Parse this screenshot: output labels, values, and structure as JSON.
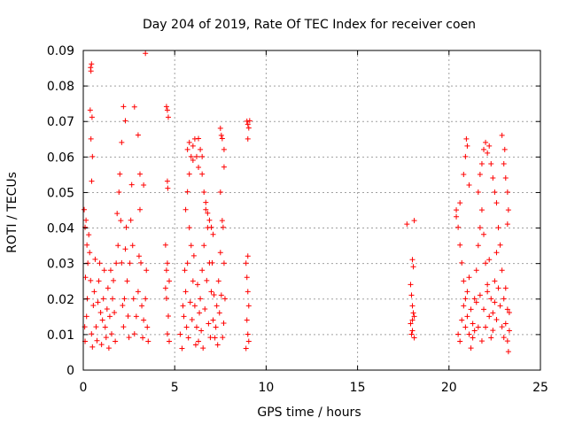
{
  "chart_data": {
    "type": "scatter",
    "title": "Day 204 of 2019, Rate Of TEC Index for receiver coen",
    "xlabel": "GPS time / hours",
    "ylabel": "ROTI / TECUs",
    "xlim": [
      0,
      25
    ],
    "ylim": [
      0,
      0.09
    ],
    "xticks": [
      0,
      5,
      10,
      15,
      20,
      25
    ],
    "yticks": [
      0,
      0.01,
      0.02,
      0.03,
      0.04,
      0.05,
      0.06,
      0.07,
      0.08,
      0.09
    ],
    "xtick_labels": [
      "0",
      "5",
      "10",
      "15",
      "20",
      "25"
    ],
    "ytick_labels": [
      "0",
      "0.01",
      "0.02",
      "0.03",
      "0.04",
      "0.05",
      "0.06",
      "0.07",
      "0.08",
      "0.09"
    ],
    "grid": true,
    "marker": "+",
    "color": "#ff0000",
    "series": [
      {
        "name": "ROTI",
        "points": [
          [
            0.05,
            0.0452
          ],
          [
            0.1,
            0.0402
          ],
          [
            0.15,
            0.0422
          ],
          [
            0.2,
            0.0352
          ],
          [
            0.12,
            0.0261
          ],
          [
            0.08,
            0.0122
          ],
          [
            0.1,
            0.0081
          ],
          [
            0.18,
            0.0151
          ],
          [
            0.22,
            0.0201
          ],
          [
            0.25,
            0.0301
          ],
          [
            0.3,
            0.0381
          ],
          [
            0.35,
            0.0331
          ],
          [
            0.4,
            0.0252
          ],
          [
            0.45,
            0.0102
          ],
          [
            0.5,
            0.0065
          ],
          [
            0.55,
            0.0182
          ],
          [
            0.6,
            0.0221
          ],
          [
            0.65,
            0.0312
          ],
          [
            0.7,
            0.0122
          ],
          [
            0.75,
            0.0083
          ],
          [
            0.8,
            0.0191
          ],
          [
            0.85,
            0.0251
          ],
          [
            0.9,
            0.0301
          ],
          [
            0.95,
            0.0162
          ],
          [
            1.0,
            0.0072
          ],
          [
            1.05,
            0.0141
          ],
          [
            1.1,
            0.0201
          ],
          [
            1.15,
            0.0281
          ],
          [
            1.2,
            0.0121
          ],
          [
            1.25,
            0.0092
          ],
          [
            1.3,
            0.0172
          ],
          [
            1.35,
            0.0231
          ],
          [
            1.4,
            0.0062
          ],
          [
            1.45,
            0.0151
          ],
          [
            1.5,
            0.0281
          ],
          [
            1.55,
            0.0102
          ],
          [
            1.6,
            0.0201
          ],
          [
            1.65,
            0.0252
          ],
          [
            1.7,
            0.0162
          ],
          [
            1.75,
            0.0081
          ],
          [
            1.8,
            0.0301
          ],
          [
            1.85,
            0.0441
          ],
          [
            1.9,
            0.0351
          ],
          [
            1.95,
            0.0501
          ],
          [
            2.0,
            0.0552
          ],
          [
            2.05,
            0.0421
          ],
          [
            2.1,
            0.0302
          ],
          [
            2.15,
            0.0182
          ],
          [
            2.2,
            0.0122
          ],
          [
            2.25,
            0.0201
          ],
          [
            2.3,
            0.0341
          ],
          [
            2.35,
            0.0402
          ],
          [
            2.4,
            0.0251
          ],
          [
            2.45,
            0.0152
          ],
          [
            2.5,
            0.0092
          ],
          [
            2.55,
            0.0301
          ],
          [
            2.6,
            0.0422
          ],
          [
            2.65,
            0.0522
          ],
          [
            2.7,
            0.0351
          ],
          [
            2.75,
            0.0201
          ],
          [
            2.8,
            0.0102
          ],
          [
            2.9,
            0.0151
          ],
          [
            3.0,
            0.0221
          ],
          [
            3.05,
            0.0321
          ],
          [
            3.1,
            0.0452
          ],
          [
            3.15,
            0.0302
          ],
          [
            3.2,
            0.0181
          ],
          [
            3.25,
            0.0091
          ],
          [
            3.3,
            0.0141
          ],
          [
            3.4,
            0.0201
          ],
          [
            3.45,
            0.0281
          ],
          [
            3.5,
            0.0121
          ],
          [
            3.55,
            0.0081
          ],
          [
            0.4,
            0.0852
          ],
          [
            0.45,
            0.0862
          ],
          [
            0.42,
            0.0842
          ],
          [
            0.38,
            0.0732
          ],
          [
            0.48,
            0.0712
          ],
          [
            0.42,
            0.0651
          ],
          [
            0.5,
            0.0601
          ],
          [
            0.46,
            0.0532
          ],
          [
            2.2,
            0.0742
          ],
          [
            2.3,
            0.0702
          ],
          [
            2.1,
            0.0641
          ],
          [
            2.8,
            0.0741
          ],
          [
            3.4,
            0.0892
          ],
          [
            3.0,
            0.0662
          ],
          [
            3.1,
            0.0552
          ],
          [
            3.3,
            0.0521
          ],
          [
            4.5,
            0.0352
          ],
          [
            4.6,
            0.0301
          ],
          [
            4.7,
            0.0251
          ],
          [
            4.55,
            0.0202
          ],
          [
            4.65,
            0.0152
          ],
          [
            4.6,
            0.0102
          ],
          [
            4.7,
            0.0081
          ],
          [
            4.5,
            0.0231
          ],
          [
            4.55,
            0.0281
          ],
          [
            4.6,
            0.0532
          ],
          [
            4.62,
            0.0512
          ],
          [
            4.55,
            0.0742
          ],
          [
            4.6,
            0.0732
          ],
          [
            4.65,
            0.0712
          ],
          [
            5.3,
            0.0101
          ],
          [
            5.4,
            0.0061
          ],
          [
            5.5,
            0.0151
          ],
          [
            5.6,
            0.0221
          ],
          [
            5.7,
            0.0301
          ],
          [
            5.8,
            0.0401
          ],
          [
            5.9,
            0.0351
          ],
          [
            6.0,
            0.0251
          ],
          [
            6.1,
            0.0181
          ],
          [
            6.2,
            0.0121
          ],
          [
            6.3,
            0.0081
          ],
          [
            6.4,
            0.0201
          ],
          [
            6.5,
            0.0281
          ],
          [
            6.6,
            0.0351
          ],
          [
            6.7,
            0.0452
          ],
          [
            6.8,
            0.0401
          ],
          [
            6.9,
            0.0302
          ],
          [
            7.0,
            0.0221
          ],
          [
            7.1,
            0.0141
          ],
          [
            7.2,
            0.0091
          ],
          [
            7.3,
            0.0181
          ],
          [
            7.4,
            0.0251
          ],
          [
            7.5,
            0.0331
          ],
          [
            7.6,
            0.0421
          ],
          [
            7.65,
            0.0402
          ],
          [
            7.7,
            0.0301
          ],
          [
            7.75,
            0.0201
          ],
          [
            5.45,
            0.0181
          ],
          [
            5.55,
            0.0281
          ],
          [
            5.65,
            0.0121
          ],
          [
            5.75,
            0.0091
          ],
          [
            5.85,
            0.0191
          ],
          [
            5.95,
            0.0142
          ],
          [
            6.05,
            0.0322
          ],
          [
            6.15,
            0.0071
          ],
          [
            6.25,
            0.0241
          ],
          [
            6.35,
            0.0161
          ],
          [
            6.45,
            0.0111
          ],
          [
            6.55,
            0.0062
          ],
          [
            6.65,
            0.0172
          ],
          [
            6.75,
            0.0252
          ],
          [
            6.85,
            0.0131
          ],
          [
            6.95,
            0.0092
          ],
          [
            7.05,
            0.0302
          ],
          [
            7.15,
            0.0212
          ],
          [
            7.25,
            0.0121
          ],
          [
            7.35,
            0.0071
          ],
          [
            7.45,
            0.0161
          ],
          [
            7.55,
            0.0211
          ],
          [
            7.62,
            0.0092
          ],
          [
            7.68,
            0.0132
          ],
          [
            5.6,
            0.0452
          ],
          [
            5.7,
            0.0502
          ],
          [
            5.8,
            0.0552
          ],
          [
            5.9,
            0.0601
          ],
          [
            6.0,
            0.0631
          ],
          [
            6.1,
            0.0651
          ],
          [
            6.2,
            0.0601
          ],
          [
            6.3,
            0.0652
          ],
          [
            6.4,
            0.0621
          ],
          [
            6.5,
            0.0552
          ],
          [
            6.6,
            0.0501
          ],
          [
            6.7,
            0.0472
          ],
          [
            6.8,
            0.0442
          ],
          [
            6.9,
            0.0422
          ],
          [
            7.0,
            0.0402
          ],
          [
            7.1,
            0.0382
          ],
          [
            7.5,
            0.0681
          ],
          [
            7.55,
            0.0661
          ],
          [
            7.6,
            0.0652
          ],
          [
            7.7,
            0.0621
          ],
          [
            7.7,
            0.0572
          ],
          [
            7.5,
            0.0501
          ],
          [
            5.7,
            0.0621
          ],
          [
            5.8,
            0.0641
          ],
          [
            6.0,
            0.0591
          ],
          [
            6.3,
            0.0571
          ],
          [
            6.5,
            0.0601
          ],
          [
            8.9,
            0.0301
          ],
          [
            8.95,
            0.0261
          ],
          [
            9.0,
            0.0221
          ],
          [
            9.05,
            0.0181
          ],
          [
            8.95,
            0.0141
          ],
          [
            9.0,
            0.0101
          ],
          [
            9.05,
            0.0081
          ],
          [
            8.9,
            0.0061
          ],
          [
            9.0,
            0.0321
          ],
          [
            8.95,
            0.0701
          ],
          [
            9.0,
            0.0692
          ],
          [
            9.05,
            0.0682
          ],
          [
            9.1,
            0.0702
          ],
          [
            9.0,
            0.0651
          ],
          [
            17.7,
            0.0411
          ],
          [
            18.1,
            0.0421
          ],
          [
            18.0,
            0.0311
          ],
          [
            18.05,
            0.0291
          ],
          [
            17.9,
            0.0241
          ],
          [
            17.95,
            0.0211
          ],
          [
            18.0,
            0.0181
          ],
          [
            18.05,
            0.0161
          ],
          [
            18.1,
            0.0151
          ],
          [
            17.9,
            0.0131
          ],
          [
            18.0,
            0.0111
          ],
          [
            17.95,
            0.0101
          ],
          [
            18.1,
            0.0091
          ],
          [
            18.0,
            0.0141
          ],
          [
            20.4,
            0.0451
          ],
          [
            20.5,
            0.0402
          ],
          [
            20.6,
            0.0352
          ],
          [
            20.7,
            0.0302
          ],
          [
            20.8,
            0.0251
          ],
          [
            20.9,
            0.0201
          ],
          [
            21.0,
            0.0151
          ],
          [
            21.1,
            0.0101
          ],
          [
            21.2,
            0.0062
          ],
          [
            21.3,
            0.0131
          ],
          [
            21.4,
            0.0201
          ],
          [
            21.5,
            0.0281
          ],
          [
            21.6,
            0.0351
          ],
          [
            21.7,
            0.0401
          ],
          [
            21.8,
            0.0451
          ],
          [
            21.9,
            0.0382
          ],
          [
            22.0,
            0.0301
          ],
          [
            22.1,
            0.0221
          ],
          [
            22.2,
            0.0151
          ],
          [
            22.3,
            0.0091
          ],
          [
            22.4,
            0.0161
          ],
          [
            22.5,
            0.0251
          ],
          [
            22.6,
            0.0331
          ],
          [
            22.7,
            0.0401
          ],
          [
            22.8,
            0.0352
          ],
          [
            22.9,
            0.0281
          ],
          [
            23.0,
            0.0201
          ],
          [
            23.1,
            0.0131
          ],
          [
            23.2,
            0.0082
          ],
          [
            23.3,
            0.0162
          ],
          [
            20.5,
            0.0101
          ],
          [
            20.6,
            0.0081
          ],
          [
            20.7,
            0.0141
          ],
          [
            20.8,
            0.0181
          ],
          [
            20.9,
            0.0121
          ],
          [
            21.0,
            0.0221
          ],
          [
            21.1,
            0.0261
          ],
          [
            21.2,
            0.0171
          ],
          [
            21.3,
            0.0091
          ],
          [
            21.4,
            0.0111
          ],
          [
            21.5,
            0.0191
          ],
          [
            21.6,
            0.0121
          ],
          [
            21.7,
            0.0211
          ],
          [
            21.8,
            0.0082
          ],
          [
            21.9,
            0.0171
          ],
          [
            22.0,
            0.0121
          ],
          [
            22.1,
            0.0241
          ],
          [
            22.2,
            0.0311
          ],
          [
            22.3,
            0.0201
          ],
          [
            22.4,
            0.0112
          ],
          [
            22.5,
            0.0191
          ],
          [
            22.6,
            0.0142
          ],
          [
            22.7,
            0.0231
          ],
          [
            22.8,
            0.0181
          ],
          [
            22.9,
            0.0122
          ],
          [
            23.0,
            0.0092
          ],
          [
            23.1,
            0.0231
          ],
          [
            23.2,
            0.0171
          ],
          [
            23.3,
            0.0111
          ],
          [
            23.25,
            0.0052
          ],
          [
            20.8,
            0.0551
          ],
          [
            20.9,
            0.0601
          ],
          [
            20.95,
            0.0651
          ],
          [
            21.0,
            0.0631
          ],
          [
            21.1,
            0.0521
          ],
          [
            21.6,
            0.0501
          ],
          [
            21.7,
            0.0551
          ],
          [
            21.8,
            0.0581
          ],
          [
            21.9,
            0.0621
          ],
          [
            22.0,
            0.0641
          ],
          [
            22.1,
            0.0611
          ],
          [
            22.2,
            0.0631
          ],
          [
            22.3,
            0.0581
          ],
          [
            22.4,
            0.0541
          ],
          [
            22.5,
            0.0501
          ],
          [
            22.6,
            0.0471
          ],
          [
            23.0,
            0.0581
          ],
          [
            23.05,
            0.0621
          ],
          [
            22.9,
            0.0661
          ],
          [
            23.1,
            0.0541
          ],
          [
            23.2,
            0.0501
          ],
          [
            23.25,
            0.0451
          ],
          [
            23.2,
            0.0411
          ],
          [
            20.4,
            0.0432
          ],
          [
            20.6,
            0.0471
          ]
        ]
      }
    ]
  }
}
